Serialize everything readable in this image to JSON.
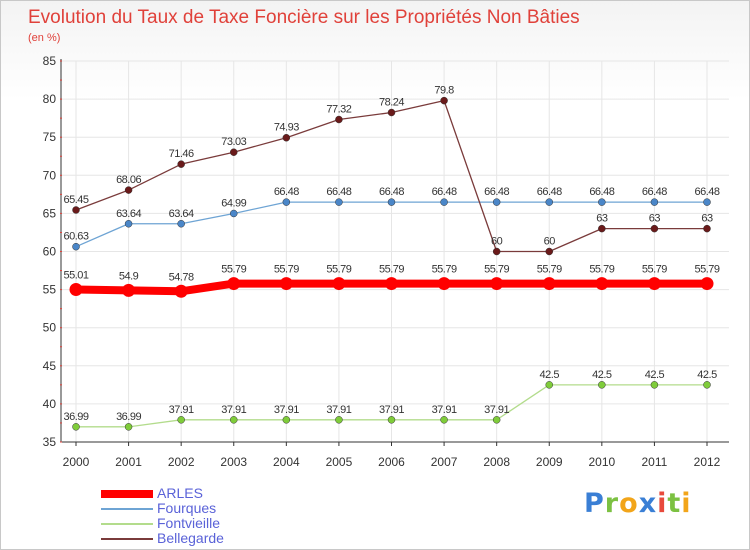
{
  "colors": {
    "title": "#e0413a",
    "axis_label": "#333333",
    "grid": "#e6e6e6",
    "legend_text": "#5a62d8"
  },
  "chart_data": {
    "type": "line",
    "title": "Evolution du Taux de Taxe Foncière sur les Propriétés Non Bâties",
    "subtitle": "(en %)",
    "xlabel": "",
    "ylabel": "",
    "ylim": [
      35,
      85
    ],
    "yticks": [
      "35",
      "40",
      "45",
      "50",
      "55",
      "60",
      "65",
      "70",
      "75",
      "80",
      "85"
    ],
    "categories": [
      "2000",
      "2001",
      "2002",
      "2003",
      "2004",
      "2005",
      "2006",
      "2007",
      "2008",
      "2009",
      "2010",
      "2011",
      "2012"
    ],
    "grid": true,
    "legend_position": "bottom-left",
    "series": [
      {
        "name": "ARLES",
        "color": "#ff0000",
        "style": "thick",
        "values": [
          55.01,
          54.9,
          54.78,
          55.79,
          55.79,
          55.79,
          55.79,
          55.79,
          55.79,
          55.79,
          55.79,
          55.79,
          55.79
        ],
        "labels": [
          "55.01",
          "54.9",
          "54.78",
          "55.79",
          "55.79",
          "55.79",
          "55.79",
          "55.79",
          "55.79",
          "55.79",
          "55.79",
          "55.79",
          "55.79"
        ]
      },
      {
        "name": "Fourques",
        "color": "#6ea4d4",
        "marker": "#4a86c8",
        "values": [
          60.63,
          63.64,
          63.64,
          64.99,
          66.48,
          66.48,
          66.48,
          66.48,
          66.48,
          66.48,
          66.48,
          66.48,
          66.48
        ],
        "labels": [
          "60.63",
          "63.64",
          "63.64",
          "64.99",
          "66.48",
          "66.48",
          "66.48",
          "66.48",
          "66.48",
          "66.48",
          "66.48",
          "66.48",
          "66.48"
        ]
      },
      {
        "name": "Fontvieille",
        "color": "#b3dc8c",
        "marker": "#7fcc3a",
        "values": [
          36.99,
          36.99,
          37.91,
          37.91,
          37.91,
          37.91,
          37.91,
          37.91,
          37.91,
          42.5,
          42.5,
          42.5,
          42.5
        ],
        "labels": [
          "36.99",
          "36.99",
          "37.91",
          "37.91",
          "37.91",
          "37.91",
          "37.91",
          "37.91",
          "37.91",
          "42.5",
          "42.5",
          "42.5",
          "42.5"
        ]
      },
      {
        "name": "Bellegarde",
        "color": "#7a3b3b",
        "marker": "#6a1a1a",
        "values": [
          65.45,
          68.06,
          71.46,
          73.03,
          74.93,
          77.32,
          78.24,
          79.8,
          60,
          60,
          63,
          63,
          63
        ],
        "labels": [
          "65.45",
          "68.06",
          "71.46",
          "73.03",
          "74.93",
          "77.32",
          "78.24",
          "79.8",
          "60",
          "60",
          "63",
          "63",
          "63"
        ]
      }
    ]
  },
  "logo": {
    "letters": [
      {
        "char": "P",
        "color": "#3a7fd5"
      },
      {
        "char": "r",
        "color": "#7cc142"
      },
      {
        "char": "o",
        "color": "#f2a51a"
      },
      {
        "char": "x",
        "color": "#3a7fd5"
      },
      {
        "char": "i",
        "color": "#e84a3c"
      },
      {
        "char": "t",
        "color": "#7cc142"
      },
      {
        "char": "i",
        "color": "#f2a51a"
      }
    ]
  }
}
